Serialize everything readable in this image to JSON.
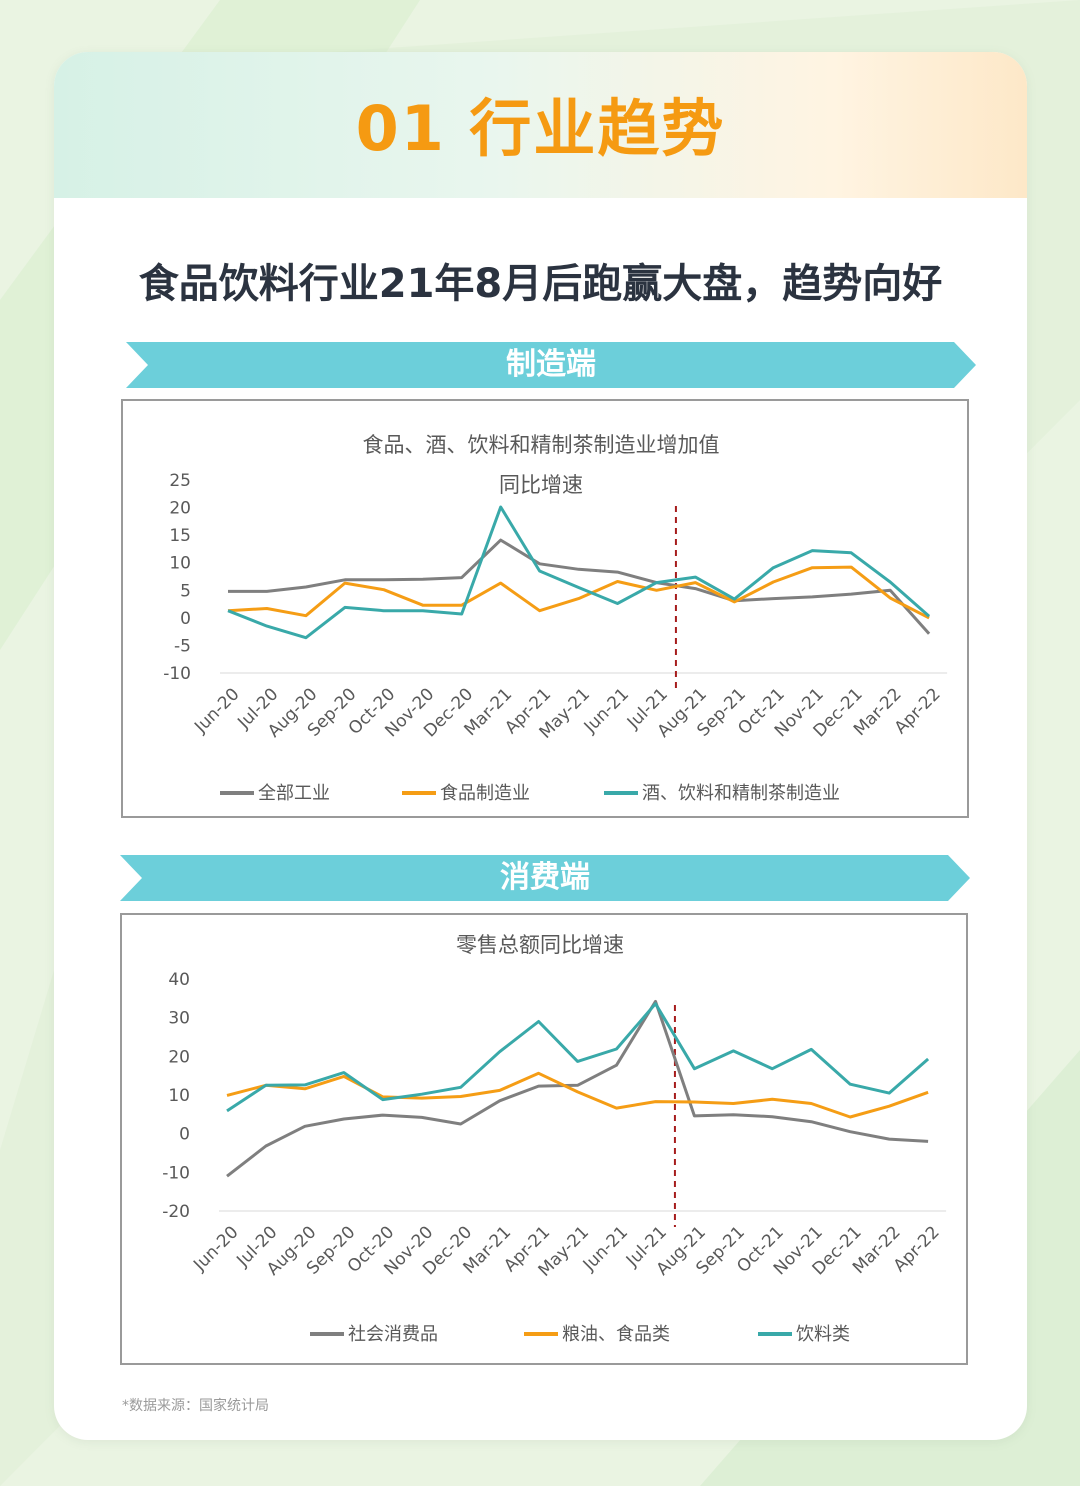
{
  "section": {
    "title": "01 行业趋势"
  },
  "headline": "食品饮料行业21年8月后跑赢大盘，趋势向好",
  "banners": {
    "manufacturing": "制造端",
    "consumption": "消费端"
  },
  "source_note": "*数据来源：国家统计局",
  "colors": {
    "accent": "#f59a12",
    "banner": "#6ccfda",
    "gray": "#7f7f7f",
    "orange": "#f59d15",
    "teal": "#39a9a9",
    "divider": "#a61c1c"
  },
  "chart_data": [
    {
      "type": "line",
      "title": "食品、酒、饮料和精制茶制造业增加值",
      "subtitle": "同比增速",
      "categories": [
        "Jun-20",
        "Jul-20",
        "Aug-20",
        "Sep-20",
        "Oct-20",
        "Nov-20",
        "Dec-20",
        "Mar-21",
        "Apr-21",
        "May-21",
        "Jun-21",
        "Jul-21",
        "Aug-21",
        "Sep-21",
        "Oct-21",
        "Nov-21",
        "Dec-21",
        "Mar-22",
        "Apr-22"
      ],
      "yticks": [
        25,
        20,
        15,
        10,
        5,
        0,
        -5,
        -10
      ],
      "ylim": [
        -10,
        25
      ],
      "divider_after": "Jul-21",
      "legend_position": "bottom",
      "series": [
        {
          "name": "全部工业",
          "color": "#7f7f7f",
          "values": [
            4.8,
            4.8,
            5.6,
            6.9,
            6.9,
            7.0,
            7.3,
            14.1,
            9.8,
            8.8,
            8.3,
            6.4,
            5.3,
            3.1,
            3.5,
            3.8,
            4.3,
            5.0,
            -2.9
          ]
        },
        {
          "name": "食品制造业",
          "color": "#f59d15",
          "values": [
            1.3,
            1.7,
            0.4,
            6.3,
            5.1,
            2.3,
            2.3,
            6.3,
            1.3,
            3.5,
            6.6,
            5.0,
            6.4,
            2.9,
            6.5,
            9.1,
            9.2,
            3.6,
            0.0
          ]
        },
        {
          "name": "酒、饮料和精制茶制造业",
          "color": "#39a9a9",
          "values": [
            1.3,
            -1.5,
            -3.6,
            1.9,
            1.3,
            1.3,
            0.7,
            20.1,
            8.5,
            5.5,
            2.6,
            6.4,
            7.4,
            3.4,
            9.1,
            12.2,
            11.8,
            6.5,
            0.3
          ]
        }
      ]
    },
    {
      "type": "line",
      "title": "零售总额同比增速",
      "categories": [
        "Jun-20",
        "Jul-20",
        "Aug-20",
        "Sep-20",
        "Oct-20",
        "Nov-20",
        "Dec-20",
        "Mar-21",
        "Apr-21",
        "May-21",
        "Jun-21",
        "Jul-21",
        "Aug-21",
        "Sep-21",
        "Oct-21",
        "Nov-21",
        "Dec-21",
        "Mar-22",
        "Apr-22"
      ],
      "yticks": [
        40,
        30,
        20,
        10,
        0,
        -10,
        -20
      ],
      "ylim": [
        -20,
        40
      ],
      "divider_after": "Jul-21",
      "legend_position": "bottom",
      "series": [
        {
          "name": "社会消费品",
          "color": "#7f7f7f",
          "values": [
            -11.0,
            -3.2,
            1.9,
            3.8,
            4.8,
            4.2,
            2.5,
            8.5,
            12.3,
            12.5,
            17.7,
            34.2,
            4.6,
            4.9,
            4.4,
            3.1,
            0.5,
            -1.4,
            -2.0
          ]
        },
        {
          "name": "粮油、食品类",
          "color": "#f59d15",
          "values": [
            9.9,
            12.5,
            11.6,
            14.8,
            9.5,
            9.2,
            9.6,
            11.2,
            15.6,
            10.8,
            6.6,
            8.3,
            8.2,
            7.8,
            8.9,
            7.8,
            4.3,
            7.1,
            10.7
          ]
        },
        {
          "name": "饮料类",
          "color": "#39a9a9",
          "values": [
            5.9,
            12.5,
            12.6,
            15.8,
            8.8,
            10.2,
            12.0,
            21.2,
            29.0,
            18.7,
            21.9,
            33.6,
            16.8,
            21.4,
            16.8,
            21.8,
            12.8,
            10.5,
            19.3
          ]
        }
      ]
    }
  ]
}
